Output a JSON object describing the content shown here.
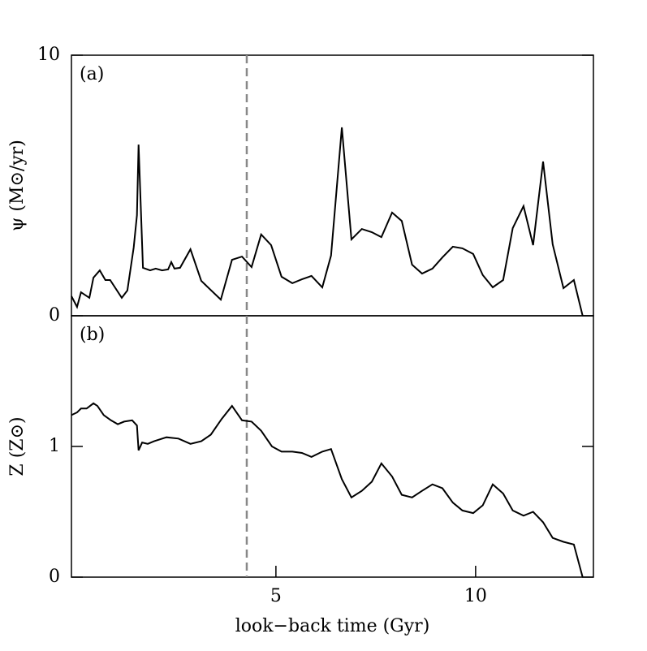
{
  "chart_data": [
    {
      "type": "line",
      "annotation": "(a)",
      "ylabel": "ψ (M⊙/yr)",
      "color": "#000000",
      "xlim": [
        -0.12,
        12.95
      ],
      "ylim": [
        0,
        10
      ],
      "yticks": [
        0,
        10
      ],
      "vline": 4.27,
      "vline_color": "#888888",
      "x": [
        -0.12,
        0.02,
        0.12,
        0.33,
        0.43,
        0.59,
        0.73,
        0.85,
        1.14,
        1.28,
        1.44,
        1.52,
        1.56,
        1.67,
        1.85,
        1.99,
        2.15,
        2.3,
        2.38,
        2.46,
        2.6,
        2.86,
        3.13,
        3.62,
        3.9,
        4.15,
        4.39,
        4.63,
        4.88,
        5.14,
        5.41,
        5.65,
        5.89,
        6.16,
        6.38,
        6.65,
        6.89,
        7.15,
        7.4,
        7.64,
        7.91,
        8.15,
        8.41,
        8.66,
        8.92,
        9.17,
        9.43,
        9.67,
        9.94,
        10.18,
        10.43,
        10.69,
        10.93,
        11.2,
        11.44,
        11.69,
        11.93,
        12.2,
        12.46,
        12.68
      ],
      "values": [
        0.75,
        0.34,
        0.9,
        0.69,
        1.46,
        1.74,
        1.37,
        1.37,
        0.69,
        0.97,
        2.62,
        3.86,
        6.57,
        1.84,
        1.74,
        1.81,
        1.74,
        1.78,
        2.06,
        1.81,
        1.84,
        2.55,
        1.34,
        0.62,
        2.15,
        2.27,
        1.87,
        3.12,
        2.71,
        1.5,
        1.25,
        1.4,
        1.53,
        1.09,
        2.31,
        7.23,
        2.93,
        3.33,
        3.21,
        3.02,
        3.96,
        3.64,
        1.96,
        1.62,
        1.81,
        2.24,
        2.65,
        2.59,
        2.37,
        1.56,
        1.09,
        1.37,
        3.36,
        4.21,
        2.71,
        5.92,
        2.74,
        1.06,
        1.37,
        0
      ]
    },
    {
      "type": "line",
      "annotation": "(b)",
      "ylabel": "Z (Z⊙)",
      "xlabel": "look−back time (Gyr)",
      "color": "#000000",
      "xlim": [
        -0.12,
        12.95
      ],
      "ylim": [
        0,
        2
      ],
      "yticks": [
        0,
        1
      ],
      "xticks": [
        5,
        10
      ],
      "vline": 4.27,
      "vline_color": "#888888",
      "x": [
        -0.12,
        0.02,
        0.12,
        0.26,
        0.43,
        0.53,
        0.69,
        0.87,
        1.04,
        1.2,
        1.4,
        1.52,
        1.56,
        1.65,
        1.79,
        1.95,
        2.26,
        2.56,
        2.86,
        3.13,
        3.37,
        3.64,
        3.9,
        4.15,
        4.39,
        4.63,
        4.9,
        5.14,
        5.41,
        5.65,
        5.89,
        6.16,
        6.38,
        6.65,
        6.89,
        7.15,
        7.4,
        7.64,
        7.91,
        8.15,
        8.41,
        8.66,
        8.92,
        9.17,
        9.43,
        9.67,
        9.94,
        10.18,
        10.43,
        10.69,
        10.93,
        11.2,
        11.44,
        11.69,
        11.93,
        12.2,
        12.46,
        12.68
      ],
      "values": [
        1.24,
        1.26,
        1.29,
        1.29,
        1.33,
        1.31,
        1.24,
        1.2,
        1.17,
        1.19,
        1.2,
        1.16,
        0.97,
        1.03,
        1.02,
        1.04,
        1.07,
        1.06,
        1.02,
        1.04,
        1.09,
        1.21,
        1.31,
        1.2,
        1.19,
        1.12,
        1.0,
        0.96,
        0.96,
        0.95,
        0.92,
        0.96,
        0.98,
        0.75,
        0.61,
        0.66,
        0.73,
        0.87,
        0.77,
        0.63,
        0.61,
        0.66,
        0.71,
        0.68,
        0.57,
        0.51,
        0.49,
        0.55,
        0.71,
        0.64,
        0.51,
        0.47,
        0.5,
        0.42,
        0.3,
        0.27,
        0.25,
        0
      ]
    }
  ]
}
